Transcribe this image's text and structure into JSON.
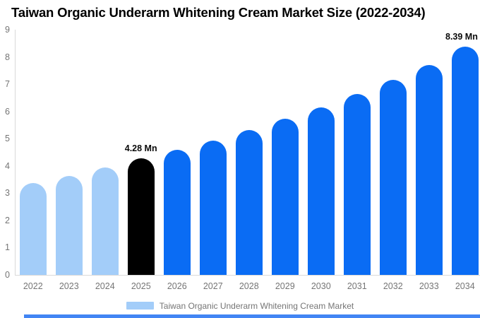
{
  "chart_data": {
    "type": "bar",
    "title": "Taiwan Organic Underarm Whitening Cream Market Size (2022-2034)",
    "categories": [
      "2022",
      "2023",
      "2024",
      "2025",
      "2026",
      "2027",
      "2028",
      "2029",
      "2030",
      "2031",
      "2032",
      "2033",
      "2034"
    ],
    "values": [
      3.38,
      3.64,
      3.93,
      4.28,
      4.58,
      4.93,
      5.31,
      5.72,
      6.15,
      6.63,
      7.16,
      7.7,
      8.39
    ],
    "unit": "Mn",
    "xlabel": "",
    "ylabel": "",
    "ylim": [
      0,
      9
    ],
    "yticks": [
      0,
      1,
      2,
      3,
      4,
      5,
      6,
      7,
      8,
      9
    ],
    "grid": false,
    "bar_colors": [
      "#a3cdf9",
      "#a3cdf9",
      "#a3cdf9",
      "#000000",
      "#0a6cf4",
      "#0a6cf4",
      "#0a6cf4",
      "#0a6cf4",
      "#0a6cf4",
      "#0a6cf4",
      "#0a6cf4",
      "#0a6cf4",
      "#0a6cf4"
    ],
    "data_labels": [
      {
        "index": 3,
        "text": "4.28 Mn"
      },
      {
        "index": 12,
        "text": "8.39 Mn"
      }
    ],
    "legend": {
      "position": "bottom",
      "label": "Taiwan Organic Underarm Whitening Cream Market",
      "swatch_color": "#a3cdf9"
    }
  },
  "colors": {
    "background": "#ffffff",
    "title_text": "#000000",
    "axis_text": "#757575",
    "axis_line": "#d9d9d9",
    "data_label_text": "#0a0a0a",
    "historical_bar": "#a3cdf9",
    "base_year_bar": "#000000",
    "forecast_bar": "#0a6cf4",
    "bottom_bar": "#4285f4"
  }
}
